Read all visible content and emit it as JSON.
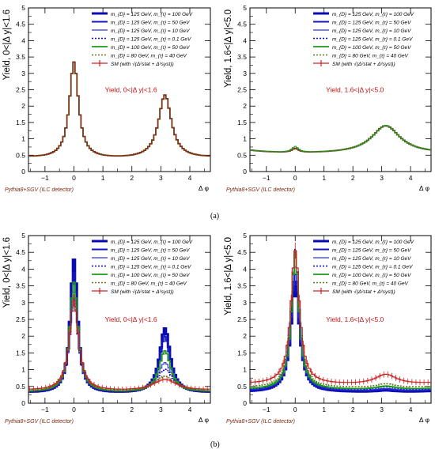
{
  "figure": {
    "panel_labels": [
      "(a)",
      "(b)"
    ]
  },
  "legend_entries": [
    {
      "label": "m_{D} = 125 GeV, m_{τ} = 100 GeV",
      "color": "#0a0ab4",
      "style": "solid",
      "width": "thick"
    },
    {
      "label": "m_{D} = 125 GeV, m_{τ} = 50 GeV",
      "color": "#0a0ab4",
      "style": "solid",
      "width": "medium"
    },
    {
      "label": "m_{D} = 125 GeV, m_{τ} = 10 GeV",
      "color": "#2020d0",
      "style": "solid",
      "width": "thin"
    },
    {
      "label": "m_{D} = 125 GeV, m_{τ} = 0.1 GeV",
      "color": "#0a0ab4",
      "style": "dotted",
      "width": "medium"
    },
    {
      "label": "m_{D} = 100 GeV, m_{τ} = 50 GeV",
      "color": "#1a9a1a",
      "style": "solid",
      "width": "medium"
    },
    {
      "label": "m_{D} = 80 GeV, m_{τ} = 40 GeV",
      "color": "#5a7a20",
      "style": "dotted",
      "width": "medium"
    },
    {
      "label": "SM (with √(Δ²stat + Δ²syst))",
      "color": "#cc2020",
      "style": "errorbar",
      "width": "thin"
    }
  ],
  "chart_data": [
    {
      "type": "line",
      "panel": "a-left",
      "ylabel": "Yield,  0<|Δ y|<1.6",
      "xlabel": "Δ  φ",
      "annotation": "Yield,   0<|Δ y|<1.6",
      "footer": "Pythia8+SGV (ILC detector)",
      "xlim": [
        -1.57,
        4.71
      ],
      "ylim": [
        0,
        5
      ],
      "xticks": [
        -1,
        0,
        1,
        2,
        3,
        4
      ],
      "yticks": [
        0,
        0.5,
        1,
        1.5,
        2,
        2.5,
        3,
        3.5,
        4,
        4.5,
        5
      ],
      "yticklabels": [
        "0",
        "0.5",
        "1",
        "1.5",
        "2",
        "2.5",
        "3",
        "3.5",
        "4",
        "4.5",
        "5"
      ],
      "model": {
        "kind": "ridge",
        "base": 0.38,
        "near": {
          "amp": 2.95,
          "gamma": 0.19
        },
        "away": {
          "amp": 1.95,
          "gamma": 0.27
        }
      },
      "series": [
        {
          "name": "SM (with √(Δ²stat + Δ²syst))"
        }
      ]
    },
    {
      "type": "line",
      "panel": "a-right",
      "ylabel": "Yield,  1.6<|Δ y|<5.0",
      "xlabel": "Δ  φ",
      "annotation": "Yield,   1.6<|Δ y|<5.0",
      "footer": "Pythia8+SGV (ILC detector)",
      "xlim": [
        -1.57,
        4.71
      ],
      "ylim": [
        0,
        5
      ],
      "xticks": [
        -1,
        0,
        1,
        2,
        3,
        4
      ],
      "yticks": [
        0,
        0.5,
        1,
        1.5,
        2,
        2.5,
        3,
        3.5,
        4,
        4.5,
        5
      ],
      "yticklabels": [
        "0",
        "0.5",
        "1",
        "1.5",
        "2",
        "2.5",
        "3",
        "3.5",
        "4",
        "4.5",
        "5"
      ],
      "model": {
        "kind": "ridge",
        "base": 0.55,
        "near": {
          "amp": 0.13,
          "gamma": 0.15
        },
        "away": {
          "amp": 0.85,
          "gamma": 0.6
        }
      },
      "series": [
        {
          "name": "SM (with √(Δ²stat + Δ²syst))"
        }
      ]
    },
    {
      "type": "line",
      "panel": "b-left",
      "ylabel": "Yield,  0<|Δ y|<1.6",
      "xlabel": "Δ  φ",
      "annotation": "Yield,   0<|Δ y|<1.6",
      "footer": "Pythia8+SGV (ILC detector)",
      "xlim": [
        -1.57,
        4.71
      ],
      "ylim": [
        0,
        5
      ],
      "xticks": [
        -1,
        0,
        1,
        2,
        3,
        4
      ],
      "yticks": [
        0,
        0.5,
        1,
        1.5,
        2,
        2.5,
        3,
        3.5,
        4,
        4.5,
        5
      ],
      "yticklabels": [
        "0",
        "0.5",
        "1",
        "1.5",
        "2",
        "2.5",
        "3",
        "3.5",
        "4",
        "4.5",
        "5"
      ],
      "series": [
        {
          "name": "m_{D} = 125 GeV, m_{τ} = 100 GeV",
          "base": 0.27,
          "near": [
            4.0,
            0.15
          ],
          "away": [
            1.95,
            0.22
          ]
        },
        {
          "name": "m_{D} = 125 GeV, m_{τ} = 50 GeV",
          "base": 0.28,
          "near": [
            3.6,
            0.16
          ],
          "away": [
            1.7,
            0.23
          ]
        },
        {
          "name": "m_{D} = 125 GeV, m_{τ} = 10 GeV",
          "base": 0.3,
          "near": [
            3.0,
            0.17
          ],
          "away": [
            0.9,
            0.3
          ]
        },
        {
          "name": "m_{D} = 125 GeV, m_{τ} = 0.1 GeV",
          "base": 0.3,
          "near": [
            2.8,
            0.18
          ],
          "away": [
            0.7,
            0.35
          ]
        },
        {
          "name": "m_{D} = 100 GeV, m_{τ} = 50 GeV",
          "base": 0.3,
          "near": [
            3.3,
            0.17
          ],
          "away": [
            1.25,
            0.25
          ]
        },
        {
          "name": "m_{D} = 80 GeV, m_{τ} = 40 GeV",
          "base": 0.35,
          "near": [
            2.9,
            0.18
          ],
          "away": [
            0.45,
            0.4
          ]
        },
        {
          "name": "SM (with √(Δ²stat + Δ²syst))",
          "base": 0.35,
          "near": [
            2.7,
            0.19
          ],
          "away": [
            0.35,
            0.5
          ]
        }
      ]
    },
    {
      "type": "line",
      "panel": "b-right",
      "ylabel": "Yield,  1.6<|Δ y|<5.0",
      "xlabel": "Δ  φ",
      "annotation": "Yield,   1.6<|Δ y|<5.0",
      "footer": "Pythia8+SGV (ILC detector)",
      "xlim": [
        -1.57,
        4.71
      ],
      "ylim": [
        0,
        5
      ],
      "xticks": [
        -1,
        0,
        1,
        2,
        3,
        4
      ],
      "yticks": [
        0,
        0.5,
        1,
        1.5,
        2,
        2.5,
        3,
        3.5,
        4,
        4.5,
        5
      ],
      "yticklabels": [
        "0",
        "0.5",
        "1",
        "1.5",
        "2",
        "2.5",
        "3",
        "3.5",
        "4",
        "4.5",
        "5"
      ],
      "series": [
        {
          "name": "m_{D} = 125 GeV, m_{τ} = 100 GeV",
          "base": 0.32,
          "near": [
            3.3,
            0.18
          ],
          "away": [
            0.05,
            0.4
          ]
        },
        {
          "name": "m_{D} = 125 GeV, m_{τ} = 50 GeV",
          "base": 0.34,
          "near": [
            3.5,
            0.17
          ],
          "away": [
            0.05,
            0.4
          ]
        },
        {
          "name": "m_{D} = 125 GeV, m_{τ} = 10 GeV",
          "base": 0.36,
          "near": [
            3.7,
            0.17
          ],
          "away": [
            0.07,
            0.4
          ]
        },
        {
          "name": "m_{D} = 125 GeV, m_{τ} = 0.1 GeV",
          "base": 0.38,
          "near": [
            4.2,
            0.16
          ],
          "away": [
            0.1,
            0.4
          ]
        },
        {
          "name": "m_{D} = 100 GeV, m_{τ} = 50 GeV",
          "base": 0.4,
          "near": [
            4.1,
            0.16
          ],
          "away": [
            0.1,
            0.4
          ]
        },
        {
          "name": "m_{D} = 80 GeV, m_{τ} = 40 GeV",
          "base": 0.45,
          "near": [
            4.0,
            0.17
          ],
          "away": [
            0.12,
            0.4
          ]
        },
        {
          "name": "SM (with √(Δ²stat + Δ²syst))",
          "base": 0.55,
          "near": [
            4.0,
            0.18
          ],
          "away": [
            0.3,
            0.45
          ]
        }
      ]
    }
  ]
}
